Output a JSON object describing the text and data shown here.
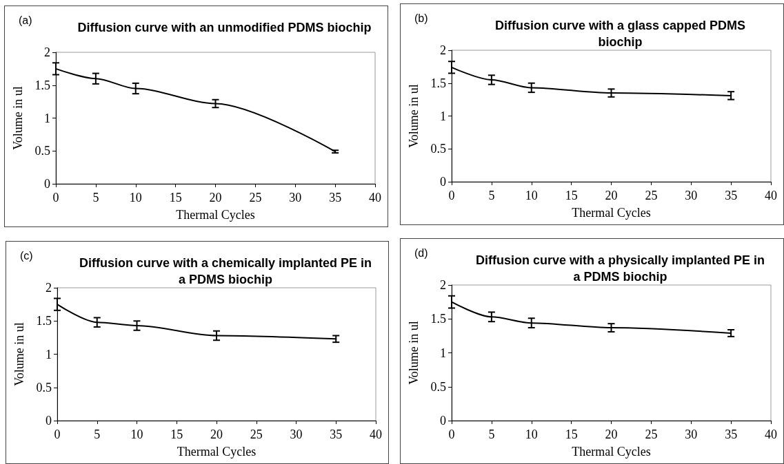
{
  "chart_data": [
    {
      "type": "line",
      "title": "Diffusion curve with an unmodified PDMS biochip",
      "xlabel": "Thermal Cycles",
      "ylabel": "Volume in ul",
      "annotations": [
        "(a)"
      ],
      "x": [
        0,
        5,
        10,
        20,
        35
      ],
      "values": [
        1.75,
        1.6,
        1.45,
        1.22,
        0.49
      ],
      "errors": [
        0.09,
        0.08,
        0.08,
        0.06,
        0.02
      ],
      "color": "#000000",
      "marker": "none",
      "xlim": [
        0,
        40
      ],
      "xticks": [
        0,
        5,
        10,
        15,
        20,
        25,
        30,
        35,
        40
      ],
      "ylim": [
        0,
        2
      ],
      "yticks": [
        0,
        0.5,
        1,
        1.5,
        2
      ]
    },
    {
      "type": "line",
      "title": "Diffusion curve with a glass capped PDMS\nbiochip",
      "xlabel": "Thermal Cycles",
      "ylabel": "Volume in ul",
      "annotations": [
        "(b)"
      ],
      "x": [
        0,
        5,
        10,
        20,
        35
      ],
      "values": [
        1.74,
        1.55,
        1.43,
        1.35,
        1.31
      ],
      "errors": [
        0.09,
        0.07,
        0.07,
        0.06,
        0.06
      ],
      "color": "#000000",
      "marker": "none",
      "xlim": [
        0,
        40
      ],
      "xticks": [
        0,
        5,
        10,
        15,
        20,
        25,
        30,
        35,
        40
      ],
      "ylim": [
        0,
        2
      ],
      "yticks": [
        0,
        0.5,
        1,
        1.5,
        2
      ]
    },
    {
      "type": "line",
      "title": "Diffusion curve with a chemically implanted PE in\na PDMS biochip",
      "xlabel": "Thermal Cycles",
      "ylabel": "Volume in ul",
      "annotations": [
        "(c)"
      ],
      "x": [
        0,
        5,
        10,
        20,
        35
      ],
      "values": [
        1.75,
        1.48,
        1.43,
        1.28,
        1.23
      ],
      "errors": [
        0.09,
        0.07,
        0.07,
        0.07,
        0.05
      ],
      "color": "#000000",
      "marker": "none",
      "xlim": [
        0,
        40
      ],
      "xticks": [
        0,
        5,
        10,
        15,
        20,
        25,
        30,
        35,
        40
      ],
      "ylim": [
        0,
        2
      ],
      "yticks": [
        0,
        0.5,
        1,
        1.5,
        2
      ]
    },
    {
      "type": "line",
      "title": "Diffusion curve with a physically implanted PE in\na PDMS biochip",
      "xlabel": "Thermal Cycles",
      "ylabel": "Volume in ul",
      "annotations": [
        "(d)"
      ],
      "x": [
        0,
        5,
        10,
        20,
        35
      ],
      "values": [
        1.75,
        1.53,
        1.44,
        1.37,
        1.29
      ],
      "errors": [
        0.09,
        0.07,
        0.07,
        0.06,
        0.05
      ],
      "color": "#000000",
      "marker": "none",
      "xlim": [
        0,
        40
      ],
      "xticks": [
        0,
        5,
        10,
        15,
        20,
        25,
        30,
        35,
        40
      ],
      "ylim": [
        0,
        2
      ],
      "yticks": [
        0,
        0.5,
        1,
        1.5,
        2
      ]
    }
  ]
}
